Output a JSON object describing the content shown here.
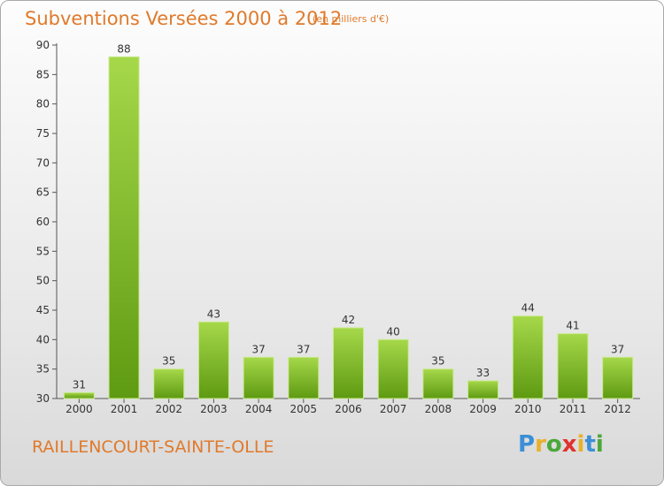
{
  "header": {
    "title": "Subventions Versées 2000 à 2012",
    "subtitle": "(en milliers d'€)"
  },
  "footer": {
    "commune": "RAILLENCOURT-SAINTE-OLLE",
    "logo_text": "Proxiti"
  },
  "colors": {
    "accent": "#e07a2c",
    "bar_light": "#a6d84a",
    "bar_dark": "#5e9a12"
  },
  "chart_data": {
    "type": "bar",
    "title": "Subventions Versées 2000 à 2012",
    "subtitle": "(en milliers d'€)",
    "xlabel": "",
    "ylabel": "",
    "categories": [
      "2000",
      "2001",
      "2002",
      "2003",
      "2004",
      "2005",
      "2006",
      "2007",
      "2008",
      "2009",
      "2010",
      "2011",
      "2012"
    ],
    "values": [
      31,
      88,
      35,
      43,
      37,
      37,
      42,
      40,
      35,
      33,
      44,
      41,
      37
    ],
    "ylim": [
      30,
      90
    ],
    "yticks": [
      30,
      35,
      40,
      45,
      50,
      55,
      60,
      65,
      70,
      75,
      80,
      85,
      90
    ],
    "grid": false,
    "legend": "none"
  }
}
